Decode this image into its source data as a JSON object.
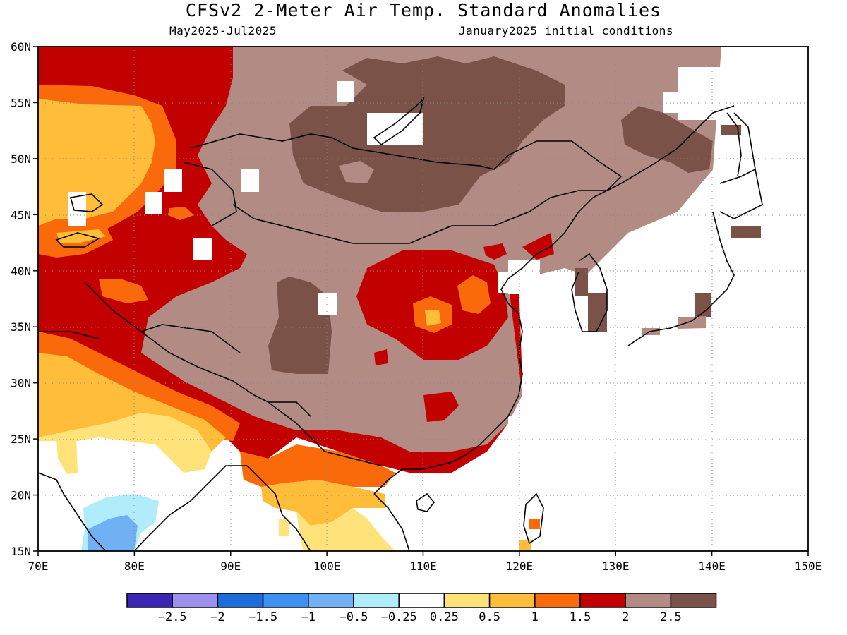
{
  "header": {
    "title": "CFSv2 2-Meter Air Temp. Standard Anomalies",
    "period": "May2025-Jul2025",
    "init": "January2025 initial conditions"
  },
  "map": {
    "lon_ticks": [
      "70E",
      "80E",
      "90E",
      "100E",
      "110E",
      "120E",
      "130E",
      "140E",
      "150E"
    ],
    "lat_ticks": [
      "60N",
      "55N",
      "50N",
      "45N",
      "40N",
      "35N",
      "30N",
      "25N",
      "20N",
      "15N"
    ]
  },
  "legend": {
    "labels": [
      "−2.5",
      "−2",
      "−1.5",
      "−1",
      "−0.5",
      "−0.25",
      "0.25",
      "0.5",
      "1",
      "1.5",
      "2",
      "2.5"
    ],
    "colors": [
      "#3b25b5",
      "#9d8fee",
      "#1d6cdb",
      "#3d8ff0",
      "#6fb1f3",
      "#b1ecfb",
      "#ffffff",
      "#ffe37a",
      "#ffbd3a",
      "#fb6a0a",
      "#c20000",
      "#b28c84",
      "#7a5248"
    ]
  },
  "palette": {
    "lightyellow": "#ffe37a",
    "yellow": "#ffbd3a",
    "orange": "#fb6a0a",
    "red": "#c20000",
    "tan": "#b28c84",
    "brown": "#7a5248",
    "lightblue": "#b1ecfb",
    "midblue": "#6fb1f3"
  }
}
